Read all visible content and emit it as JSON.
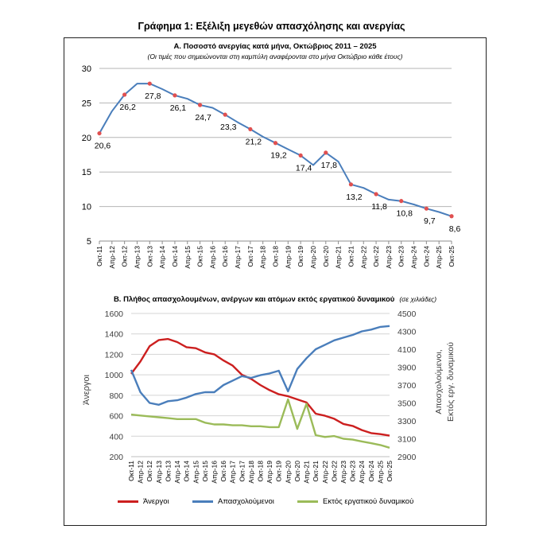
{
  "main_title": "Γράφημα 1: Εξέλιξη μεγεθών απασχόλησης και ανεργίας",
  "chart_data": [
    {
      "type": "line",
      "title": "Α. Ποσοστό ανεργίας κατά μήνα, Οκτώβριος 2011 – 2025",
      "subtitle": "(Οι τιμές που σημειώνονται στη καμπύλη αναφέρονται στο μήνα Οκτώβριο κάθε έτους)",
      "categories": [
        "Οκτ-11",
        "Απρ-12",
        "Οκτ-12",
        "Απρ-13",
        "Οκτ-13",
        "Απρ-14",
        "Οκτ-14",
        "Απρ-15",
        "Οκτ-15",
        "Απρ-16",
        "Οκτ-16",
        "Απρ-17",
        "Οκτ-17",
        "Απρ-18",
        "Οκτ-18",
        "Απρ-19",
        "Οκτ-19",
        "Απρ-20",
        "Οκτ-20",
        "Απρ-21",
        "Οκτ-21",
        "Απρ-22",
        "Οκτ-22",
        "Απρ-23",
        "Οκτ-23",
        "Απρ-24",
        "Οκτ-24",
        "Απρ-25",
        "Οκτ-25"
      ],
      "ylim": [
        5,
        30
      ],
      "yticks": [
        5,
        10,
        15,
        20,
        25,
        30
      ],
      "grid": true,
      "series": [
        {
          "color": "#4a7ebb",
          "values": [
            20.6,
            23.8,
            26.2,
            27.8,
            27.8,
            27.0,
            26.1,
            25.6,
            24.7,
            24.3,
            23.3,
            22.2,
            21.2,
            20.1,
            19.2,
            18.3,
            17.4,
            16.0,
            17.8,
            16.5,
            13.2,
            12.7,
            11.8,
            11.0,
            10.8,
            10.3,
            9.7,
            9.2,
            8.6
          ]
        }
      ],
      "october_markers": {
        "color": "#e05050",
        "labels": [
          "20,6",
          "26,2",
          "27,8",
          "26,1",
          "24,7",
          "23,3",
          "21,2",
          "19,2",
          "17,4",
          "17,8",
          "13,2",
          "11,8",
          "10,8",
          "9,7",
          "8,6"
        ]
      }
    },
    {
      "type": "line",
      "title": "Β. Πλήθος απασχολουμένων, ανέργων και ατόμων εκτός εργατικού δυναμικού",
      "subtitle": "(σε χιλιάδες)",
      "categories": [
        "Οκτ-11",
        "Απρ-12",
        "Οκτ-12",
        "Απρ-13",
        "Οκτ-13",
        "Απρ-14",
        "Οκτ-14",
        "Απρ-15",
        "Οκτ-15",
        "Απρ-16",
        "Οκτ-16",
        "Απρ-17",
        "Οκτ-17",
        "Απρ-18",
        "Οκτ-18",
        "Απρ-19",
        "Οκτ-19",
        "Απρ-20",
        "Οκτ-20",
        "Απρ-21",
        "Οκτ-21",
        "Απρ-22",
        "Οκτ-22",
        "Απρ-23",
        "Οκτ-23",
        "Απρ-24",
        "Οκτ-24",
        "Απρ-25",
        "Οκτ-25"
      ],
      "ylabel": "Άνεργοι",
      "y2label": "Απασχολούμενοι, Εκτός εργ. δυναμικού",
      "ylim": [
        200,
        1600
      ],
      "yticks": [
        200,
        400,
        600,
        800,
        1000,
        1200,
        1400,
        1600
      ],
      "y2lim": [
        2900,
        4500
      ],
      "y2ticks": [
        2900,
        3100,
        3300,
        3500,
        3700,
        3900,
        4100,
        4300,
        4500
      ],
      "series": [
        {
          "name": "Άνεργοι",
          "axis": "left",
          "color": "#cc1f1f",
          "values": [
            1010,
            1130,
            1280,
            1340,
            1350,
            1320,
            1270,
            1260,
            1220,
            1200,
            1140,
            1090,
            1000,
            960,
            900,
            850,
            810,
            790,
            760,
            730,
            620,
            600,
            570,
            520,
            500,
            460,
            430,
            420,
            405
          ]
        },
        {
          "name": "Απασχολούμενοι",
          "axis": "right",
          "color": "#4a7ebb",
          "values": [
            3870,
            3620,
            3500,
            3480,
            3520,
            3530,
            3560,
            3600,
            3620,
            3620,
            3700,
            3750,
            3800,
            3780,
            3810,
            3830,
            3860,
            3630,
            3880,
            4000,
            4100,
            4150,
            4200,
            4230,
            4260,
            4300,
            4320,
            4350,
            4360
          ]
        },
        {
          "name": "Εκτός εργατικού δυναμικού",
          "axis": "right",
          "color": "#9bbb59",
          "values": [
            3370,
            3360,
            3350,
            3340,
            3330,
            3320,
            3320,
            3320,
            3280,
            3260,
            3260,
            3250,
            3250,
            3240,
            3240,
            3230,
            3230,
            3540,
            3210,
            3490,
            3140,
            3120,
            3130,
            3100,
            3090,
            3070,
            3050,
            3030,
            3000
          ]
        }
      ]
    }
  ]
}
